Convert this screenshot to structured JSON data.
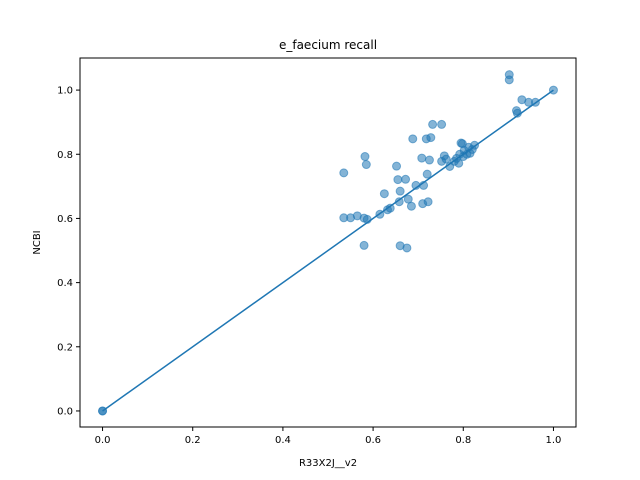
{
  "chart_data": {
    "type": "scatter",
    "title": "e_faecium recall",
    "xlabel": "R33X2J__v2",
    "ylabel": "NCBI",
    "xlim": [
      -0.05,
      1.05
    ],
    "ylim": [
      -0.05,
      1.1
    ],
    "xticks": [
      "0.0",
      "0.2",
      "0.4",
      "0.6",
      "0.8",
      "1.0"
    ],
    "yticks": [
      "0.0",
      "0.2",
      "0.4",
      "0.6",
      "0.8",
      "1.0"
    ],
    "grid": false,
    "colors": {
      "points": "#1f77b4",
      "line": "#1f77b4"
    },
    "points": [
      [
        0.0,
        0.0
      ],
      [
        0.0,
        0.0
      ],
      [
        0.535,
        0.742
      ],
      [
        0.535,
        0.602
      ],
      [
        0.55,
        0.602
      ],
      [
        0.565,
        0.608
      ],
      [
        0.58,
        0.601
      ],
      [
        0.587,
        0.597
      ],
      [
        0.58,
        0.516
      ],
      [
        0.582,
        0.793
      ],
      [
        0.585,
        0.768
      ],
      [
        0.615,
        0.613
      ],
      [
        0.625,
        0.677
      ],
      [
        0.632,
        0.627
      ],
      [
        0.638,
        0.632
      ],
      [
        0.652,
        0.763
      ],
      [
        0.655,
        0.721
      ],
      [
        0.658,
        0.652
      ],
      [
        0.66,
        0.685
      ],
      [
        0.66,
        0.515
      ],
      [
        0.672,
        0.722
      ],
      [
        0.675,
        0.508
      ],
      [
        0.678,
        0.66
      ],
      [
        0.685,
        0.638
      ],
      [
        0.688,
        0.848
      ],
      [
        0.695,
        0.703
      ],
      [
        0.708,
        0.788
      ],
      [
        0.71,
        0.646
      ],
      [
        0.712,
        0.703
      ],
      [
        0.718,
        0.848
      ],
      [
        0.72,
        0.738
      ],
      [
        0.722,
        0.652
      ],
      [
        0.725,
        0.782
      ],
      [
        0.728,
        0.852
      ],
      [
        0.732,
        0.893
      ],
      [
        0.752,
        0.893
      ],
      [
        0.752,
        0.778
      ],
      [
        0.758,
        0.795
      ],
      [
        0.762,
        0.785
      ],
      [
        0.77,
        0.762
      ],
      [
        0.78,
        0.778
      ],
      [
        0.785,
        0.787
      ],
      [
        0.79,
        0.772
      ],
      [
        0.792,
        0.8
      ],
      [
        0.795,
        0.835
      ],
      [
        0.798,
        0.833
      ],
      [
        0.8,
        0.793
      ],
      [
        0.802,
        0.812
      ],
      [
        0.808,
        0.8
      ],
      [
        0.812,
        0.822
      ],
      [
        0.815,
        0.803
      ],
      [
        0.82,
        0.815
      ],
      [
        0.825,
        0.828
      ],
      [
        0.902,
        1.048
      ],
      [
        0.902,
        1.032
      ],
      [
        0.918,
        0.936
      ],
      [
        0.92,
        0.928
      ],
      [
        0.93,
        0.97
      ],
      [
        0.945,
        0.962
      ],
      [
        0.96,
        0.962
      ],
      [
        1.0,
        1.0
      ]
    ],
    "line": [
      [
        0.0,
        0.0
      ],
      [
        1.0,
        1.0
      ]
    ]
  }
}
